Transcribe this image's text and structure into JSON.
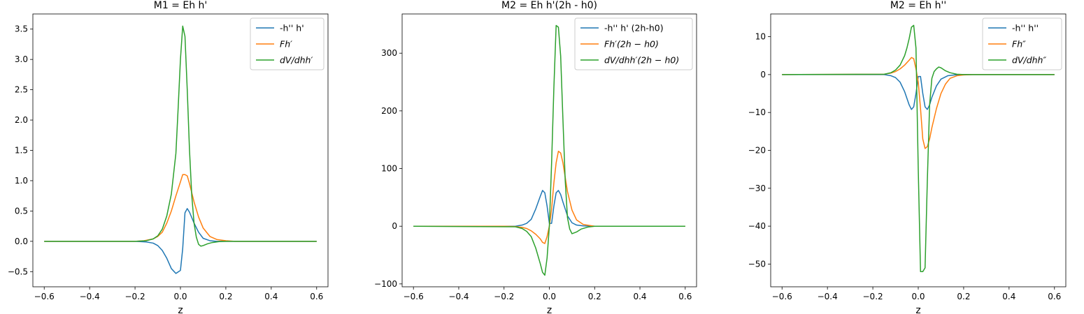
{
  "figure": {
    "colors": {
      "s0": "#1f77b4",
      "s1": "#ff7f0e",
      "s2": "#2ca02c"
    }
  },
  "chart_data": [
    {
      "type": "line",
      "title": "M1 = Eh h'",
      "xlabel": "z",
      "ylabel": "",
      "xlim": [
        -0.65,
        0.65
      ],
      "ylim": [
        -0.75,
        3.75
      ],
      "xticks": [
        -0.6,
        -0.4,
        -0.2,
        0.0,
        0.2,
        0.4,
        0.6
      ],
      "xtick_labels": [
        "−0.6",
        "−0.4",
        "−0.2",
        "0.0",
        "0.2",
        "0.4",
        "0.6"
      ],
      "yticks": [
        -0.5,
        0.0,
        0.5,
        1.0,
        1.5,
        2.0,
        2.5,
        3.0,
        3.5
      ],
      "ytick_labels": [
        "−0.5",
        "0.0",
        "0.5",
        "1.0",
        "1.5",
        "2.0",
        "2.5",
        "3.0",
        "3.5"
      ],
      "legend": "top-right",
      "series": [
        {
          "name": "-h'' h'",
          "color": "#1f77b4",
          "x": [
            -0.6,
            -0.2,
            -0.15,
            -0.12,
            -0.1,
            -0.08,
            -0.06,
            -0.04,
            -0.02,
            0.0,
            0.01,
            0.02,
            0.03,
            0.04,
            0.06,
            0.08,
            0.1,
            0.13,
            0.16,
            0.2,
            0.6
          ],
          "y": [
            0,
            0,
            -0.01,
            -0.03,
            -0.07,
            -0.15,
            -0.28,
            -0.45,
            -0.53,
            -0.48,
            -0.12,
            0.47,
            0.54,
            0.48,
            0.3,
            0.15,
            0.05,
            0.01,
            0.0,
            0,
            0
          ]
        },
        {
          "name": "Fh′",
          "color": "#ff7f0e",
          "x": [
            -0.6,
            -0.2,
            -0.16,
            -0.12,
            -0.1,
            -0.08,
            -0.06,
            -0.04,
            -0.02,
            0.0,
            0.01,
            0.02,
            0.03,
            0.04,
            0.06,
            0.08,
            0.1,
            0.13,
            0.16,
            0.2,
            0.24,
            0.6
          ],
          "y": [
            0,
            0,
            0.01,
            0.04,
            0.08,
            0.15,
            0.3,
            0.5,
            0.75,
            0.98,
            1.1,
            1.1,
            1.08,
            0.95,
            0.65,
            0.4,
            0.22,
            0.08,
            0.03,
            0.01,
            0,
            0
          ]
        },
        {
          "name": "dV/dhh′",
          "color": "#2ca02c",
          "x": [
            -0.6,
            -0.2,
            -0.15,
            -0.12,
            -0.1,
            -0.08,
            -0.06,
            -0.04,
            -0.02,
            -0.01,
            0.0,
            0.01,
            0.02,
            0.03,
            0.04,
            0.05,
            0.06,
            0.07,
            0.08,
            0.09,
            0.1,
            0.12,
            0.14,
            0.17,
            0.2,
            0.6
          ],
          "y": [
            0,
            0,
            0.01,
            0.04,
            0.09,
            0.2,
            0.42,
            0.78,
            1.45,
            2.2,
            3.0,
            3.55,
            3.38,
            2.5,
            1.5,
            0.75,
            0.3,
            0.07,
            -0.05,
            -0.08,
            -0.07,
            -0.04,
            -0.02,
            -0.005,
            0,
            0
          ]
        }
      ]
    },
    {
      "type": "line",
      "title": "M2 = Eh h'(2h - h0)",
      "xlabel": "z",
      "ylabel": "",
      "xlim": [
        -0.65,
        0.65
      ],
      "ylim": [
        -105,
        368
      ],
      "xticks": [
        -0.6,
        -0.4,
        -0.2,
        0.0,
        0.2,
        0.4,
        0.6
      ],
      "xtick_labels": [
        "−0.6",
        "−0.4",
        "−0.2",
        "0.0",
        "0.2",
        "0.4",
        "0.6"
      ],
      "yticks": [
        -100,
        0,
        100,
        200,
        300
      ],
      "ytick_labels": [
        "−100",
        "0",
        "100",
        "200",
        "300"
      ],
      "legend": "top-right",
      "series": [
        {
          "name": "-h'' h' (2h-h0)",
          "color": "#1f77b4",
          "x": [
            -0.6,
            -0.15,
            -0.12,
            -0.1,
            -0.08,
            -0.06,
            -0.04,
            -0.03,
            -0.02,
            -0.01,
            0.0,
            0.01,
            0.02,
            0.03,
            0.04,
            0.05,
            0.06,
            0.08,
            0.1,
            0.12,
            0.15,
            0.2,
            0.6
          ],
          "y": [
            0,
            0,
            2,
            5,
            12,
            30,
            52,
            62,
            58,
            35,
            5,
            5,
            35,
            58,
            62,
            55,
            42,
            18,
            6,
            2,
            0.5,
            0,
            0
          ]
        },
        {
          "name": "Fh′(2h − h0)",
          "color": "#ff7f0e",
          "x": [
            -0.6,
            -0.2,
            -0.15,
            -0.12,
            -0.1,
            -0.08,
            -0.06,
            -0.04,
            -0.03,
            -0.02,
            -0.01,
            0.0,
            0.01,
            0.02,
            0.03,
            0.04,
            0.05,
            0.06,
            0.07,
            0.08,
            0.1,
            0.12,
            0.15,
            0.2,
            0.6
          ],
          "y": [
            0,
            0,
            -0.5,
            -2,
            -4,
            -8,
            -14,
            -22,
            -28,
            -30,
            -18,
            0,
            30,
            75,
            110,
            130,
            127,
            110,
            85,
            60,
            28,
            11,
            3,
            0,
            0
          ]
        },
        {
          "name": "dV/dhh′(2h − h0)",
          "color": "#2ca02c",
          "x": [
            -0.6,
            -0.15,
            -0.12,
            -0.1,
            -0.08,
            -0.06,
            -0.04,
            -0.03,
            -0.02,
            -0.01,
            0.0,
            0.01,
            0.02,
            0.03,
            0.04,
            0.05,
            0.06,
            0.07,
            0.08,
            0.09,
            0.1,
            0.12,
            0.14,
            0.17,
            0.2,
            0.6
          ],
          "y": [
            0,
            -1,
            -4,
            -9,
            -18,
            -38,
            -65,
            -80,
            -85,
            -55,
            0,
            110,
            240,
            348,
            345,
            295,
            185,
            80,
            15,
            -5,
            -13,
            -10,
            -5,
            -1.5,
            0,
            0
          ]
        }
      ]
    },
    {
      "type": "line",
      "title": "M2 = Eh h''",
      "xlabel": "z",
      "ylabel": "",
      "xlim": [
        -0.65,
        0.65
      ],
      "ylim": [
        -56,
        16
      ],
      "xticks": [
        -0.6,
        -0.4,
        -0.2,
        0.0,
        0.2,
        0.4,
        0.6
      ],
      "xtick_labels": [
        "−0.6",
        "−0.4",
        "−0.2",
        "0.0",
        "0.2",
        "0.4",
        "0.6"
      ],
      "yticks": [
        -50,
        -40,
        -30,
        -20,
        -10,
        0,
        10
      ],
      "ytick_labels": [
        "−50",
        "−40",
        "−30",
        "−20",
        "−10",
        "0",
        "10"
      ],
      "legend": "top-right",
      "series": [
        {
          "name": "-h'' h''",
          "color": "#1f77b4",
          "x": [
            -0.6,
            -0.15,
            -0.12,
            -0.1,
            -0.08,
            -0.06,
            -0.04,
            -0.03,
            -0.02,
            -0.01,
            0.0,
            0.01,
            0.02,
            0.03,
            0.04,
            0.05,
            0.06,
            0.08,
            0.1,
            0.13,
            0.16,
            0.2,
            0.6
          ],
          "y": [
            0,
            0,
            -0.3,
            -0.8,
            -2,
            -4.5,
            -8,
            -9.2,
            -8.5,
            -5,
            -0.5,
            -0.5,
            -5,
            -8.5,
            -9.2,
            -8,
            -6,
            -3,
            -1.2,
            -0.3,
            -0.1,
            0,
            0
          ]
        },
        {
          "name": "Fh″",
          "color": "#ff7f0e",
          "x": [
            -0.6,
            -0.15,
            -0.12,
            -0.1,
            -0.08,
            -0.06,
            -0.04,
            -0.03,
            -0.02,
            -0.01,
            0.0,
            0.01,
            0.02,
            0.03,
            0.04,
            0.05,
            0.06,
            0.08,
            0.1,
            0.12,
            0.14,
            0.17,
            0.2,
            0.24,
            0.6
          ],
          "y": [
            0,
            0.1,
            0.4,
            0.8,
            1.5,
            2.5,
            3.8,
            4.5,
            4.2,
            1.5,
            -2,
            -9,
            -17,
            -19.5,
            -19,
            -17,
            -14,
            -9,
            -5,
            -2.5,
            -1,
            -0.3,
            -0.1,
            0,
            0
          ]
        },
        {
          "name": "dV/dhh″",
          "color": "#2ca02c",
          "x": [
            -0.6,
            -0.15,
            -0.12,
            -0.1,
            -0.08,
            -0.06,
            -0.05,
            -0.04,
            -0.03,
            -0.02,
            -0.01,
            0.0,
            0.01,
            0.02,
            0.03,
            0.04,
            0.05,
            0.06,
            0.07,
            0.08,
            0.09,
            0.1,
            0.12,
            0.14,
            0.17,
            0.2,
            0.6
          ],
          "y": [
            0,
            0.1,
            0.5,
            1.2,
            2.5,
            5,
            7,
            9.5,
            12.5,
            13,
            7,
            -25,
            -52,
            -52,
            -51,
            -28,
            -8,
            -1,
            0.8,
            1.5,
            2,
            1.8,
            1,
            0.5,
            0.1,
            0,
            0
          ]
        }
      ]
    }
  ]
}
